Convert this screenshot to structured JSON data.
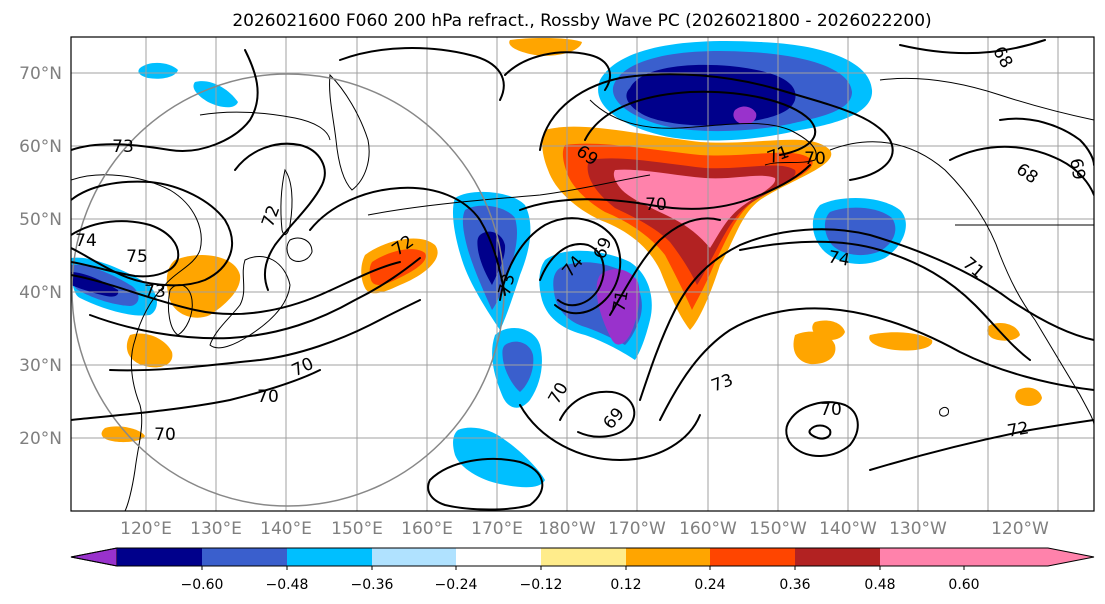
{
  "title": "2026021600 F060 200 hPa refract., Rossby Wave PC (2026021800 - 2026022200)",
  "lat_labels": [
    "70°N",
    "60°N",
    "50°N",
    "40°N",
    "30°N",
    "20°N"
  ],
  "lon_labels": [
    "120°E",
    "130°E",
    "140°E",
    "150°E",
    "160°E",
    "170°E",
    "180°W",
    "170°W",
    "160°W",
    "150°W",
    "140°W",
    "130°W",
    "120°W"
  ],
  "colorbar": {
    "tick_labels": [
      "−0.60",
      "−0.48",
      "−0.36",
      "−0.24",
      "−0.12",
      "0.12",
      "0.24",
      "0.36",
      "0.48",
      "0.60"
    ],
    "colors": [
      "#9932cc",
      "#00008b",
      "#3a5fcd",
      "#00bfff",
      "#b0e2ff",
      "#ffffff",
      "#ffec8b",
      "#ffa500",
      "#ff4500",
      "#b22222",
      "#ff82ab"
    ]
  },
  "contour_labels": [
    "73",
    "74",
    "75",
    "73",
    "72",
    "72",
    "70",
    "70",
    "70",
    "69",
    "70",
    "70",
    "71",
    "69",
    "74",
    "73",
    "71",
    "70",
    "69",
    "73",
    "70",
    "74",
    "71",
    "72",
    "68",
    "69",
    "68"
  ],
  "colors": {
    "gridline": "#a0a0a0",
    "axis_label": "#7f7f7f"
  }
}
